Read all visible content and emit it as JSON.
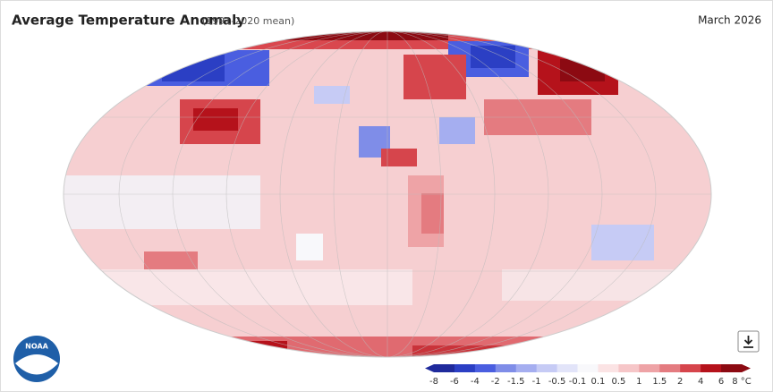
{
  "header": {
    "title": "Average Temperature Anomaly",
    "subtitle": "(1991-2020 mean)",
    "date": "March 2026"
  },
  "logo": {
    "text": "NOAA"
  },
  "legend": {
    "ticks": [
      -8,
      -6,
      -4,
      -2,
      -1.5,
      -1,
      -0.5,
      -0.1,
      0.1,
      0.5,
      1,
      1.5,
      2,
      4,
      6,
      {
        "value": 8,
        "label": "8 °C"
      }
    ],
    "colors": [
      "#1f2a9c",
      "#2b3fc4",
      "#4a5ee0",
      "#7f8de8",
      "#a5aef0",
      "#c6cbf5",
      "#e2e4f9",
      "#f8f8fb",
      "#fbe3e4",
      "#f6c6c8",
      "#eea3a6",
      "#e47b80",
      "#d6454c",
      "#b5121b",
      "#8c0a12"
    ]
  }
}
